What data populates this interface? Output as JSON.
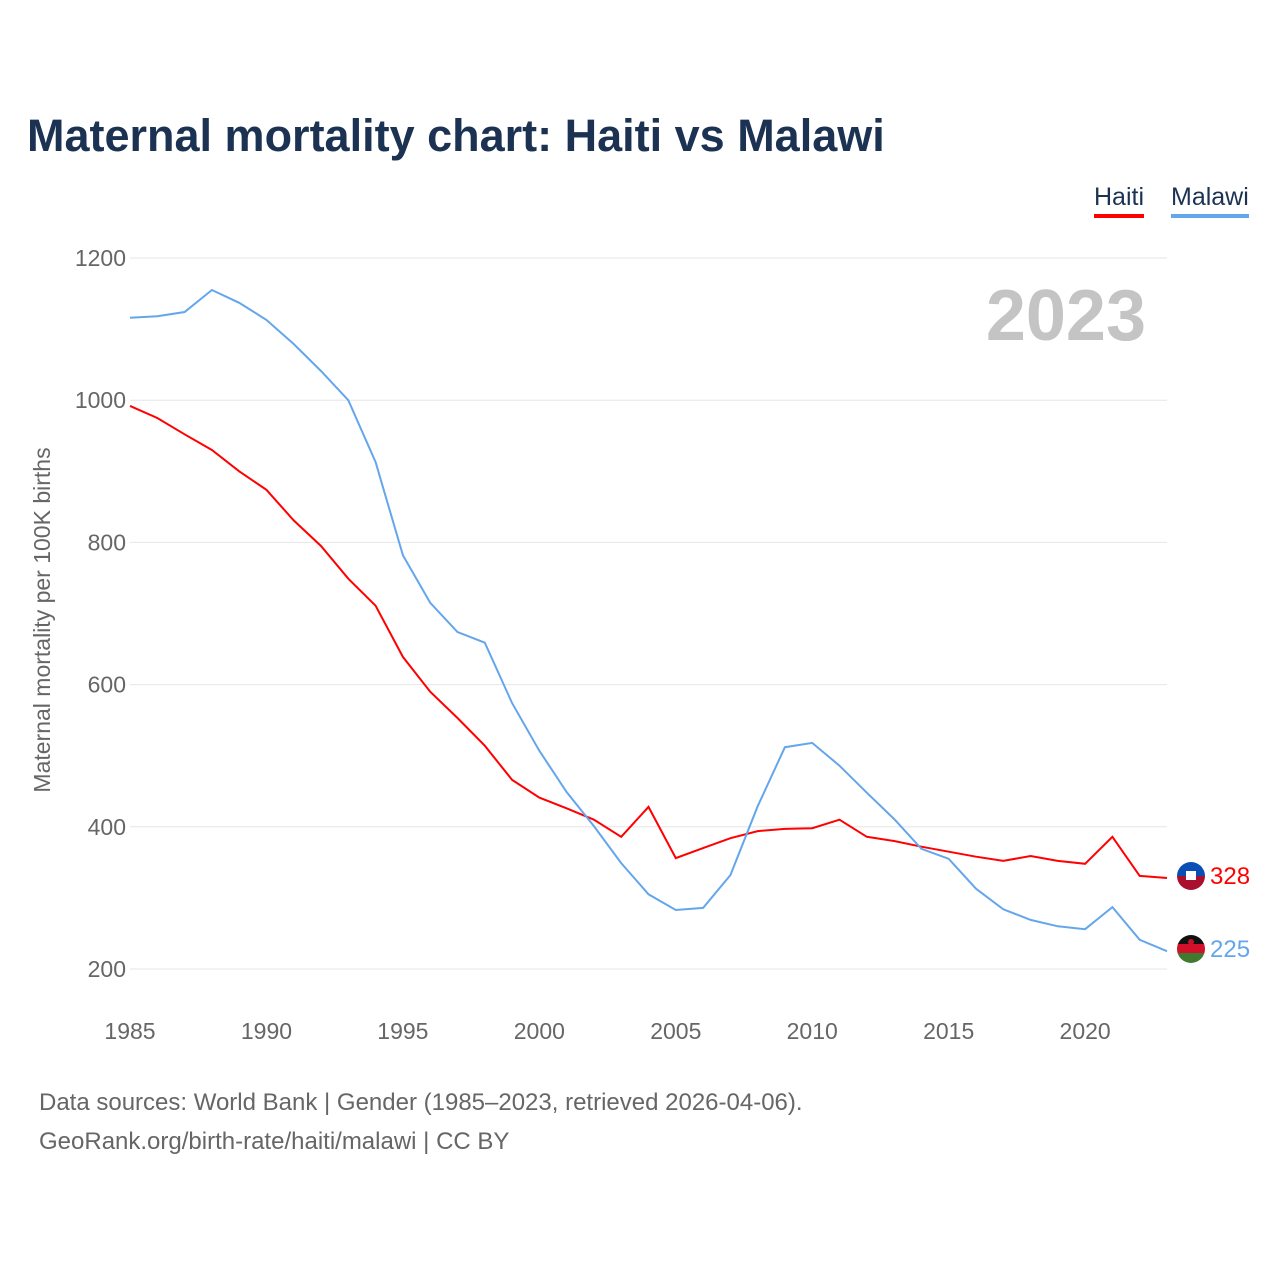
{
  "title": "Maternal mortality chart: Haiti vs Malawi",
  "footer": {
    "line1": "Data sources: World Bank | Gender (1985–2023, retrieved 2026-04-06).",
    "line2": "GeoRank.org/birth-rate/haiti/malawi | CC BY"
  },
  "chart_data": {
    "type": "line",
    "title": "Maternal mortality chart: Haiti vs Malawi",
    "ylabel": "Maternal mortality per 100K births",
    "xlabel": "",
    "year_label": "2023",
    "xlim": [
      1985,
      2023
    ],
    "ylim": [
      200,
      1200
    ],
    "xticks": [
      "1985",
      "1990",
      "1995",
      "2000",
      "2005",
      "2010",
      "2015",
      "2020"
    ],
    "yticks": [
      "200",
      "400",
      "600",
      "800",
      "1000",
      "1200"
    ],
    "grid": true,
    "legend_position": "top-right",
    "x": [
      1985,
      1986,
      1987,
      1988,
      1989,
      1990,
      1991,
      1992,
      1993,
      1994,
      1995,
      1996,
      1997,
      1998,
      1999,
      2000,
      2001,
      2002,
      2003,
      2004,
      2005,
      2006,
      2007,
      2008,
      2009,
      2010,
      2011,
      2012,
      2013,
      2014,
      2015,
      2016,
      2017,
      2018,
      2019,
      2020,
      2021,
      2022,
      2023
    ],
    "series": [
      {
        "name": "Haiti",
        "color": "#ff0000",
        "end_label": "328",
        "values": [
          992,
          975,
          952,
          930,
          900,
          874,
          831,
          795,
          749,
          711,
          639,
          590,
          553,
          514,
          466,
          441,
          426,
          410,
          386,
          428,
          356,
          370,
          384,
          394,
          397,
          398,
          410,
          386,
          380,
          372,
          365,
          358,
          352,
          359,
          352,
          348,
          386,
          331,
          328
        ]
      },
      {
        "name": "Malawi",
        "color": "#64a6ec",
        "end_label": "225",
        "values": [
          1116,
          1118,
          1124,
          1155,
          1137,
          1113,
          1079,
          1041,
          1000,
          913,
          782,
          715,
          674,
          659,
          574,
          507,
          449,
          401,
          349,
          305,
          283,
          286,
          332,
          429,
          512,
          518,
          486,
          448,
          411,
          369,
          355,
          313,
          284,
          269,
          260,
          256,
          287,
          241,
          225
        ]
      }
    ]
  }
}
